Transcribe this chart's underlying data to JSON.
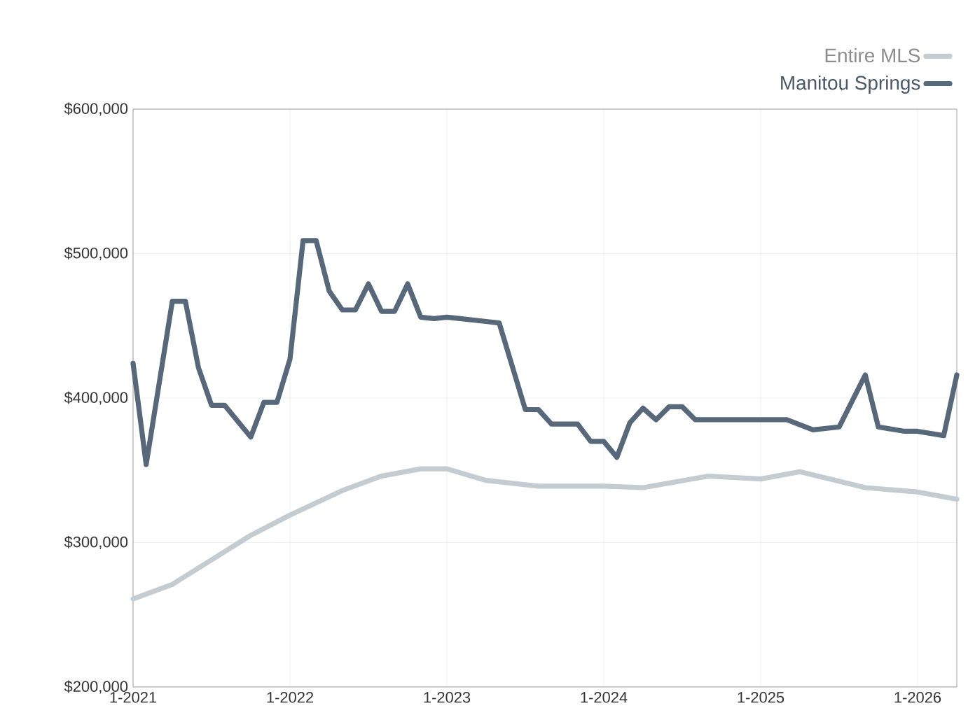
{
  "chart_data": {
    "type": "line",
    "xlim": [
      "2021-01",
      "2026-04"
    ],
    "xticks": [
      {
        "value": "2021-01",
        "label": "1-2021"
      },
      {
        "value": "2022-01",
        "label": "1-2022"
      },
      {
        "value": "2023-01",
        "label": "1-2023"
      },
      {
        "value": "2024-01",
        "label": "1-2024"
      },
      {
        "value": "2025-01",
        "label": "1-2025"
      },
      {
        "value": "2026-01",
        "label": "1-2026"
      }
    ],
    "ylim": [
      200000,
      600000
    ],
    "yticks": [
      {
        "value": 200000,
        "label": "$200,000"
      },
      {
        "value": 300000,
        "label": "$300,000"
      },
      {
        "value": 400000,
        "label": "$400,000"
      },
      {
        "value": 500000,
        "label": "$500,000"
      },
      {
        "value": 600000,
        "label": "$600,000"
      }
    ],
    "grid": true,
    "legend": "top right",
    "marker": "none",
    "line_style": "solid",
    "series": [
      {
        "name": "Entire MLS",
        "color": "#c5ccd1",
        "x": [
          "2021-01",
          "2021-04",
          "2021-07",
          "2021-10",
          "2022-01",
          "2022-05",
          "2022-08",
          "2022-11",
          "2023-01",
          "2023-04",
          "2023-08",
          "2024-01",
          "2024-04",
          "2024-09",
          "2025-01",
          "2025-04",
          "2025-09",
          "2026-01",
          "2026-04"
        ],
        "values": [
          261000,
          271000,
          288000,
          305000,
          319000,
          336000,
          346000,
          351000,
          351000,
          343000,
          339000,
          339000,
          338000,
          346000,
          344000,
          349000,
          338000,
          335000,
          330000
        ]
      },
      {
        "name": "Manitou Springs",
        "color": "#56687a",
        "x": [
          "2021-01",
          "2021-02",
          "2021-04",
          "2021-05",
          "2021-06",
          "2021-07",
          "2021-08",
          "2021-10",
          "2021-11",
          "2021-12",
          "2022-01",
          "2022-02",
          "2022-03",
          "2022-04",
          "2022-05",
          "2022-06",
          "2022-07",
          "2022-08",
          "2022-09",
          "2022-10",
          "2022-11",
          "2022-12",
          "2023-01",
          "2023-02",
          "2023-04",
          "2023-05",
          "2023-07",
          "2023-08",
          "2023-09",
          "2023-11",
          "2023-12",
          "2024-01",
          "2024-02",
          "2024-03",
          "2024-04",
          "2024-05",
          "2024-06",
          "2024-07",
          "2024-08",
          "2025-03",
          "2025-05",
          "2025-07",
          "2025-09",
          "2025-10",
          "2025-12",
          "2026-01",
          "2026-03",
          "2026-04"
        ],
        "values": [
          424000,
          354000,
          467000,
          467000,
          421000,
          395000,
          395000,
          373000,
          397000,
          397000,
          427000,
          509000,
          509000,
          474000,
          461000,
          461000,
          479000,
          460000,
          460000,
          479000,
          456000,
          455000,
          456000,
          455000,
          453000,
          452000,
          392000,
          392000,
          382000,
          382000,
          370000,
          370000,
          359000,
          383000,
          393000,
          385000,
          394000,
          394000,
          385000,
          385000,
          378000,
          380000,
          416000,
          380000,
          377000,
          377000,
          374000,
          416000
        ]
      }
    ]
  }
}
